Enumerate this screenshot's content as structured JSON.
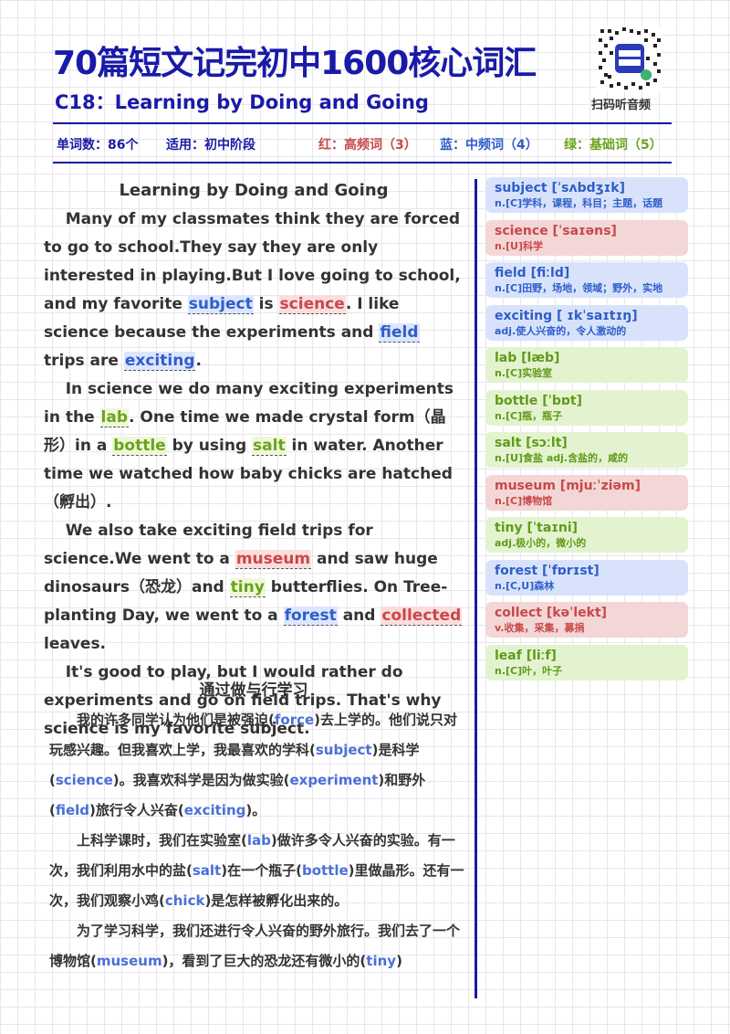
{
  "header": {
    "title": "70篇短文记完初中1600核心词汇",
    "subtitle": "C18：Learning by Doing and Going",
    "qr_label": "扫码听音频"
  },
  "info": {
    "word_count": "单词数：86个",
    "level": "适用：初中阶段",
    "red": "红：高频词（3）",
    "blue": "蓝：中频词（4）",
    "green": "绿：基础词（5）"
  },
  "colors": {
    "brand": "#1a1aa8",
    "red": "#c84848",
    "blue": "#2f5ec9",
    "green": "#6aa31c"
  },
  "article": {
    "title": "Learning by Doing and Going",
    "p1": {
      "t1": "Many of my classmates think they are forced to go to school.They say they are only interested in playing.But I love going to school, and my favorite ",
      "k1": "subject",
      "t2": " is ",
      "k2": "science",
      "t3": ". I like science because the experiments and ",
      "k3": "field",
      "t4": " trips are ",
      "k4": "exciting",
      "t5": "."
    },
    "p2": {
      "t1": "In science we do many exciting experiments in the ",
      "k1": "lab",
      "t2": ". One time we made crystal form（晶形）in a ",
      "k2": "bottle",
      "t3": " by using ",
      "k3": "salt",
      "t4": " in water. Another time we watched how baby chicks are hatched（孵出）."
    },
    "p3": {
      "t1": "We also take exciting field trips for science.We went to a ",
      "k1": "museum",
      "t2": " and saw huge dinosaurs（恐龙）and ",
      "k2": "tiny",
      "t3": " butterflies. On Tree-planting Day, we went to a ",
      "k3": "forest",
      "t4": " and ",
      "k4": "collected",
      "t5": " leaves."
    },
    "p4": "It's good to play, but I would rather do experiments and go on field trips. That's why science is my favorite subject."
  },
  "translation": {
    "title": "通过做与行学习",
    "p1": {
      "t1": "我的许多同学认为他们是被强迫(",
      "e1": "force",
      "t2": ")去上学的。他们说只对玩感兴趣。但我喜欢上学，我最喜欢的学科(",
      "e2": "subject",
      "t3": ")是科学(",
      "e3": "science",
      "t4": ")。我喜欢科学是因为做实验(",
      "e4": "experiment",
      "t5": ")和野外(",
      "e5": "field",
      "t6": ")旅行令人兴奋(",
      "e6": "exciting",
      "t7": ")。"
    },
    "p2": {
      "t1": "上科学课时，我们在实验室(",
      "e1": "lab",
      "t2": ")做许多令人兴奋的实验。有一次，我们利用水中的盐(",
      "e2": "salt",
      "t3": ")在一个瓶子(",
      "e3": "bottle",
      "t4": ")里做晶形。还有一次，我们观察小鸡(",
      "e4": "chick",
      "t5": ")是怎样被孵化出来的。"
    },
    "p3": {
      "t1": "为了学习科学，我们还进行令人兴奋的野外旅行。我们去了一个博物馆(",
      "e1": "museum",
      "t2": ")，看到了巨大的恐龙还有微小的(",
      "e2": "tiny",
      "t3": ")"
    }
  },
  "vocab": [
    {
      "word": "subject [ˈsʌbdʒɪk]",
      "meaning": "n.[C]学科，课程，科目；主题，话题",
      "level": "blue"
    },
    {
      "word": "science [ˈsaɪəns]",
      "meaning": "n.[U]科学",
      "level": "red"
    },
    {
      "word": "field [fiːld]",
      "meaning": "n.[C]田野，场地，领域；野外，实地",
      "level": "blue"
    },
    {
      "word": "exciting [ ɪkˈsaɪtɪŋ]",
      "meaning": "adj.使人兴奋的，令人激动的",
      "level": "blue"
    },
    {
      "word": "lab [læb]",
      "meaning": "n.[C]实验室",
      "level": "green"
    },
    {
      "word": "bottle [ˈbɒt]",
      "meaning": "n.[C]瓶，瓶子",
      "level": "green"
    },
    {
      "word": "salt [sɔːlt]",
      "meaning": "n.[U]食盐 adj.含盐的，咸的",
      "level": "green"
    },
    {
      "word": "museum [mjuːˈziəm]",
      "meaning": "n.[C]博物馆",
      "level": "red"
    },
    {
      "word": "tiny [ˈtaɪni]",
      "meaning": "adj.极小的，微小的",
      "level": "green"
    },
    {
      "word": "forest [ˈfɒrɪst]",
      "meaning": "n.[C,U]森林",
      "level": "blue"
    },
    {
      "word": "collect [kəˈlekt]",
      "meaning": "v.收集，采集，募捐",
      "level": "red"
    },
    {
      "word": "leaf [liːf]",
      "meaning": "n.[C]叶，叶子",
      "level": "green"
    }
  ]
}
